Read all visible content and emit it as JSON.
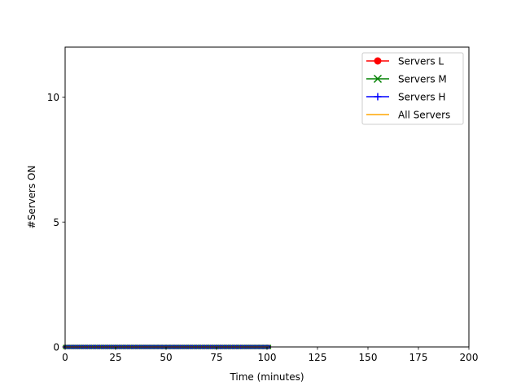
{
  "chart_data": {
    "type": "line",
    "xlabel": "Time (minutes)",
    "ylabel": "#Servers ON",
    "xlim": [
      0,
      200
    ],
    "ylim": [
      0,
      12
    ],
    "xticks": [
      0,
      25,
      50,
      75,
      100,
      125,
      150,
      175,
      200
    ],
    "yticks": [
      0,
      5,
      10
    ],
    "grid": false,
    "legend_position": "top-right",
    "series": [
      {
        "name": "Servers L",
        "color": "#ff0000",
        "marker": "circle",
        "x_start": 0,
        "x_end": 101,
        "x_step": 1,
        "value": 0
      },
      {
        "name": "Servers M",
        "color": "#008000",
        "marker": "x",
        "x_start": 0,
        "x_end": 101,
        "x_step": 1,
        "value": 0
      },
      {
        "name": "Servers H",
        "color": "#0000ff",
        "marker": "plus",
        "x_start": 0,
        "x_end": 101,
        "x_step": 1,
        "value": 0
      },
      {
        "name": "All Servers",
        "color": "#ffa500",
        "marker": "none",
        "x_start": 0,
        "x_end": 101,
        "x_step": 1,
        "value": 0
      }
    ]
  }
}
